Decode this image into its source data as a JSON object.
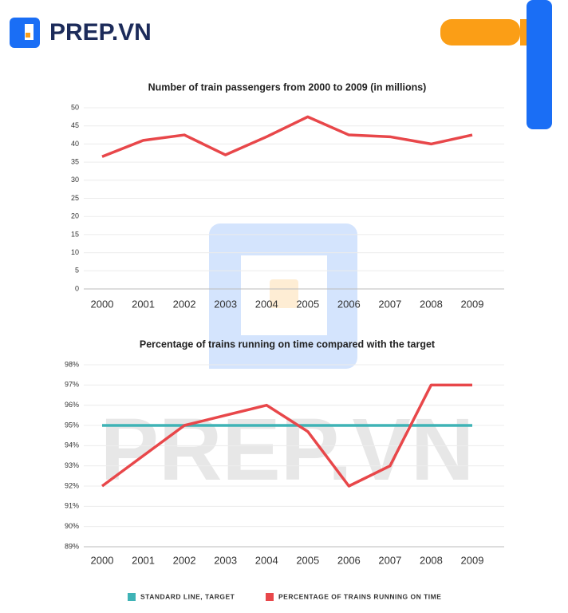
{
  "header": {
    "logo": "PREP.VN"
  },
  "chart_data": [
    {
      "type": "line",
      "title": "Number of train passengers from 2000 to 2009 (in millions)",
      "categories": [
        "2000",
        "2001",
        "2002",
        "2003",
        "2004",
        "2005",
        "2006",
        "2007",
        "2008",
        "2009"
      ],
      "values": [
        36.5,
        41,
        42.5,
        37,
        42,
        47.5,
        42.5,
        42,
        40,
        42.5
      ],
      "color": "#e8474a",
      "ylim": [
        0,
        50
      ],
      "yticks": [
        0,
        5,
        10,
        15,
        20,
        25,
        30,
        35,
        40,
        45,
        50
      ],
      "grid": true
    },
    {
      "type": "line",
      "title": "Percentage of trains running on time compared with the target",
      "categories": [
        "2000",
        "2001",
        "2002",
        "2003",
        "2004",
        "2005",
        "2006",
        "2007",
        "2008",
        "2009"
      ],
      "series": [
        {
          "name": "STANDARD LINE, TARGET",
          "color": "#3fb3b6",
          "values": [
            95,
            95,
            95,
            95,
            95,
            95,
            95,
            95,
            95,
            95
          ]
        },
        {
          "name": "PERCENTAGE OF TRAINS RUNNING ON TIME",
          "color": "#e8474a",
          "values": [
            92,
            93.5,
            95,
            95.5,
            96,
            94.7,
            92,
            93,
            97,
            97
          ]
        }
      ],
      "ylim": [
        89,
        98
      ],
      "yticks": [
        {
          "value": 89,
          "label": "89%"
        },
        {
          "value": 90,
          "label": "90%"
        },
        {
          "value": 91,
          "label": "91%"
        },
        {
          "value": 92,
          "label": "92%"
        },
        {
          "value": 93,
          "label": "93%"
        },
        {
          "value": 94,
          "label": "94%"
        },
        {
          "value": 95,
          "label": "95%"
        },
        {
          "value": 96,
          "label": "96%"
        },
        {
          "value": 97,
          "label": "97%"
        },
        {
          "value": 98,
          "label": "98%"
        }
      ],
      "grid": true,
      "legend": "bottom"
    }
  ]
}
